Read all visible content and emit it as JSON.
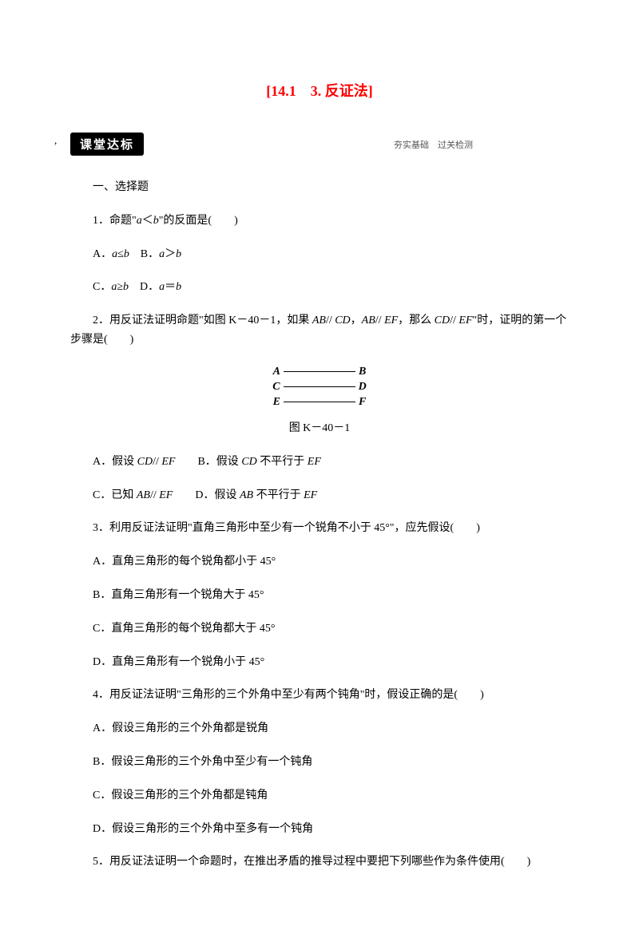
{
  "title": "[14.1　3. 反证法]",
  "header": {
    "badge": "课堂达标",
    "subtext": "夯实基础　过关检测"
  },
  "sectionHeader": "一、选择题",
  "q1": {
    "stem": "1．命题\"a＜b\"的反面是(　　)",
    "optA": "A．a≤b",
    "optB": "B．a＞b",
    "optC": "C．a≥b",
    "optD": "D．a＝b"
  },
  "q2": {
    "stem": "2．用反证法证明命题\"如图 K－40－1，如果 AB// CD，AB// EF，那么 CD// EF\"时，证明的第一个步骤是(　　)",
    "diagram": {
      "A": "A",
      "B": "B",
      "C": "C",
      "D": "D",
      "E": "E",
      "F": "F"
    },
    "caption": "图 K－40－1",
    "optA": "A．假设 CD// EF",
    "optB": "B．假设 CD 不平行于 EF",
    "optC": "C．已知 AB// EF",
    "optD": "D．假设 AB 不平行于 EF"
  },
  "q3": {
    "stem": "3．利用反证法证明\"直角三角形中至少有一个锐角不小于 45°\"，应先假设(　　)",
    "optA": "A．直角三角形的每个锐角都小于 45°",
    "optB": "B．直角三角形有一个锐角大于 45°",
    "optC": "C．直角三角形的每个锐角都大于 45°",
    "optD": "D．直角三角形有一个锐角小于 45°"
  },
  "q4": {
    "stem": "4．用反证法证明\"三角形的三个外角中至少有两个钝角\"时，假设正确的是(　　)",
    "optA": "A．假设三角形的三个外角都是锐角",
    "optB": "B．假设三角形的三个外角中至少有一个钝角",
    "optC": "C．假设三角形的三个外角都是钝角",
    "optD": "D．假设三角形的三个外角中至多有一个钝角"
  },
  "q5": {
    "stem": "5．用反证法证明一个命题时，在推出矛盾的推导过程中要把下列哪些作为条件使用(　　)"
  }
}
